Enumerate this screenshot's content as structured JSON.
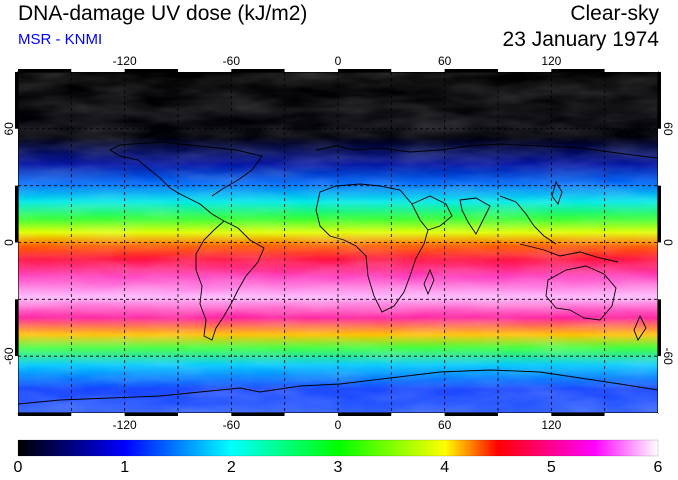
{
  "header": {
    "title": "DNA-damage UV dose (kJ/m2)",
    "subtitle": "MSR - KNMI",
    "sky_condition": "Clear-sky",
    "date": "23 January 1974"
  },
  "map": {
    "lon_ticks": [
      "-120",
      "-60",
      "0",
      "60",
      "120"
    ],
    "lon_tick_values": [
      -120,
      -60,
      0,
      60,
      120
    ],
    "lat_ticks": [
      "60",
      "0",
      "-60"
    ],
    "lat_tick_values": [
      60,
      0,
      -60
    ],
    "lon_range": [
      -180,
      180
    ],
    "lat_range": [
      -90,
      90
    ],
    "gridlines": "dashed"
  },
  "colorbar": {
    "labels": [
      "0",
      "1",
      "2",
      "3",
      "4",
      "5",
      "6"
    ],
    "range": [
      0,
      6
    ],
    "colors": [
      "#000000",
      "#0000ff",
      "#00ffff",
      "#00ff00",
      "#ffff00",
      "#ff0000",
      "#ff00ff",
      "#ffffff"
    ]
  }
}
